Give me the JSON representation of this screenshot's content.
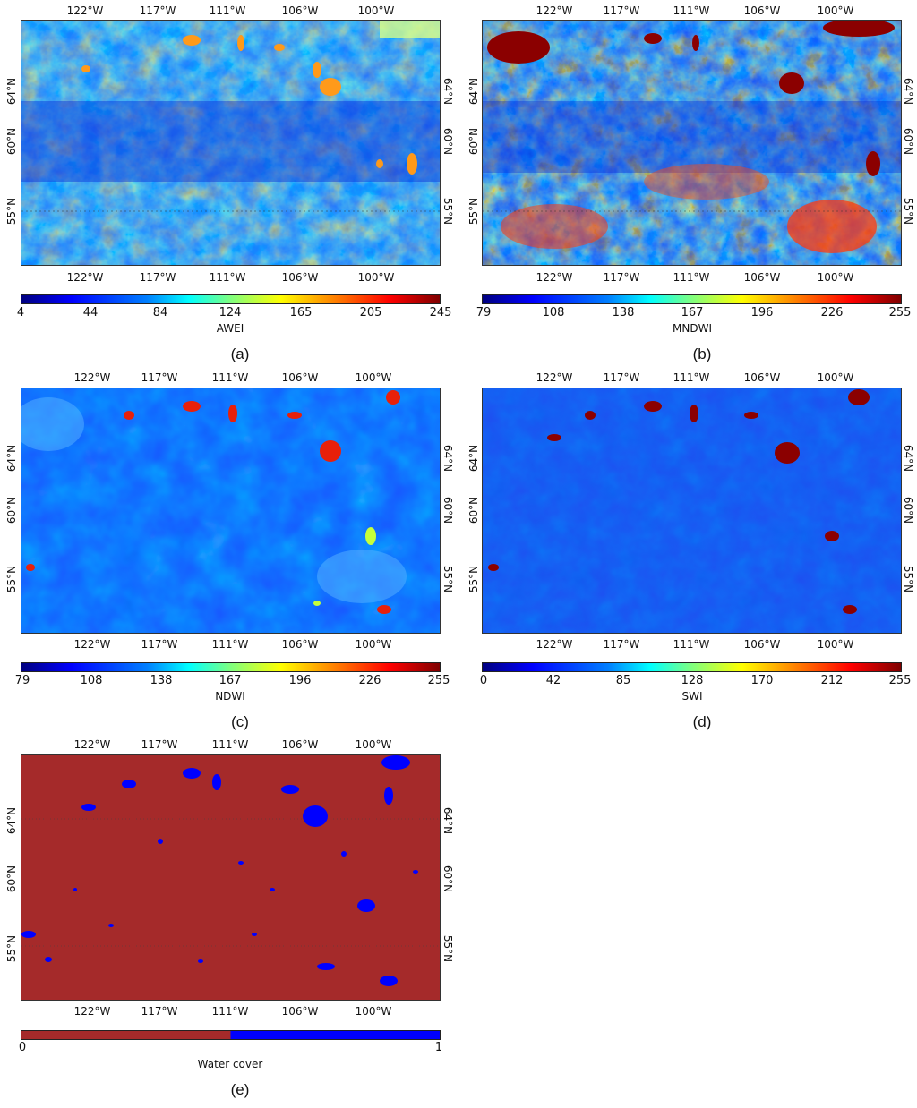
{
  "panels": [
    {
      "id": "a",
      "caption": "(a)",
      "colorbar_label": "AWEI",
      "colorbar_ticks": [
        "4",
        "44",
        "84",
        "124",
        "165",
        "205",
        "245"
      ],
      "colormap": "jet",
      "top_lon_labels": [
        "122°W",
        "117°W",
        "111°W",
        "106°W",
        "100°W"
      ],
      "bottom_lon_labels": [
        "122°W",
        "117°W",
        "111°W",
        "106°W",
        "100°W"
      ],
      "left_lat_labels": [
        "64°N",
        "60°N",
        "55°N"
      ],
      "right_lat_labels": [
        "64°N",
        "60°N",
        "55°N"
      ]
    },
    {
      "id": "b",
      "caption": "(b)",
      "colorbar_label": "MNDWI",
      "colorbar_ticks": [
        "79",
        "108",
        "138",
        "167",
        "196",
        "226",
        "255"
      ],
      "colormap": "jet",
      "top_lon_labels": [
        "122°W",
        "117°W",
        "111°W",
        "106°W",
        "100°W"
      ],
      "bottom_lon_labels": [
        "122°W",
        "117°W",
        "111°W",
        "106°W",
        "100°W"
      ],
      "left_lat_labels": [
        "64°N",
        "60°N",
        "55°N"
      ],
      "right_lat_labels": [
        "64°N",
        "60°N",
        "55°N"
      ]
    },
    {
      "id": "c",
      "caption": "(c)",
      "colorbar_label": "NDWI",
      "colorbar_ticks": [
        "79",
        "108",
        "138",
        "167",
        "196",
        "226",
        "255"
      ],
      "colormap": "jet",
      "top_lon_labels": [
        "122°W",
        "117°W",
        "111°W",
        "106°W",
        "100°W"
      ],
      "bottom_lon_labels": [
        "122°W",
        "117°W",
        "111°W",
        "106°W",
        "100°W"
      ],
      "left_lat_labels": [
        "64°N",
        "60°N",
        "55°N"
      ],
      "right_lat_labels": [
        "64°N",
        "60°N",
        "55°N"
      ]
    },
    {
      "id": "d",
      "caption": "(d)",
      "colorbar_label": "SWI",
      "colorbar_ticks": [
        "0",
        "42",
        "85",
        "128",
        "170",
        "212",
        "255"
      ],
      "colormap": "jet",
      "top_lon_labels": [
        "122°W",
        "117°W",
        "111°W",
        "106°W",
        "100°W"
      ],
      "bottom_lon_labels": [
        "122°W",
        "117°W",
        "111°W",
        "106°W",
        "100°W"
      ],
      "left_lat_labels": [
        "64°N",
        "60°N",
        "55°N"
      ],
      "right_lat_labels": [
        "64°N",
        "60°N",
        "55°N"
      ]
    },
    {
      "id": "e",
      "caption": "(e)",
      "colorbar_label": "Water cover",
      "colorbar_ticks": [
        "0",
        "1"
      ],
      "colormap": "binary",
      "top_lon_labels": [
        "122°W",
        "117°W",
        "111°W",
        "106°W",
        "100°W"
      ],
      "bottom_lon_labels": [
        "122°W",
        "117°W",
        "111°W",
        "106°W",
        "100°W"
      ],
      "left_lat_labels": [
        "64°N",
        "60°N",
        "55°N"
      ],
      "right_lat_labels": [
        "64°N",
        "60°N",
        "55°N"
      ]
    }
  ],
  "colors": {
    "land": "#a52a2a",
    "water": "#0000ff",
    "jet_low": "#00007f",
    "jet_high": "#7f0000"
  }
}
